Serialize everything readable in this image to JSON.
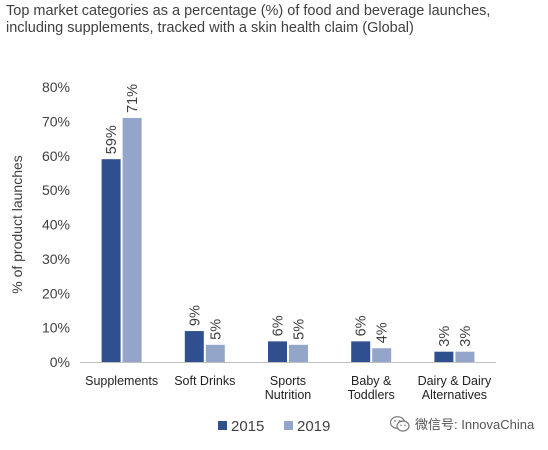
{
  "title_lines": [
    "Top market categories as a percentage (%) of food and beverage launches,",
    "including supplements, tracked with a skin health claim (Global)"
  ],
  "watermark": {
    "text": "微信号: InnovaChina",
    "icon": "wechat-icon"
  },
  "colors": {
    "series_2015": "#2f4f8f",
    "series_2019": "#93a5c9",
    "axis": "#bfbfbf",
    "text": "#404040"
  },
  "chart_data": {
    "type": "bar",
    "title": "Top market categories as a percentage (%) of food and beverage launches, including supplements, tracked with a skin health claim (Global)",
    "ylabel": "% of product launches",
    "xlabel": "",
    "ylim": [
      0,
      80
    ],
    "yticks": [
      0,
      10,
      20,
      30,
      40,
      50,
      60,
      70,
      80
    ],
    "ytick_labels": [
      "0%",
      "10%",
      "20%",
      "30%",
      "40%",
      "50%",
      "60%",
      "70%",
      "80%"
    ],
    "categories": [
      [
        "Supplements"
      ],
      [
        "Soft Drinks"
      ],
      [
        "Sports",
        "Nutrition"
      ],
      [
        "Baby &",
        "Toddlers"
      ],
      [
        "Dairy & Dairy",
        "Alternatives"
      ]
    ],
    "series": [
      {
        "name": "2015",
        "values": [
          59,
          9,
          6,
          6,
          3
        ],
        "labels": [
          "59%",
          "9%",
          "6%",
          "6%",
          "3%"
        ]
      },
      {
        "name": "2019",
        "values": [
          71,
          5,
          5,
          4,
          3
        ],
        "labels": [
          "71%",
          "5%",
          "5%",
          "4%",
          "3%"
        ]
      }
    ],
    "legend_position": "bottom",
    "grid": false
  }
}
